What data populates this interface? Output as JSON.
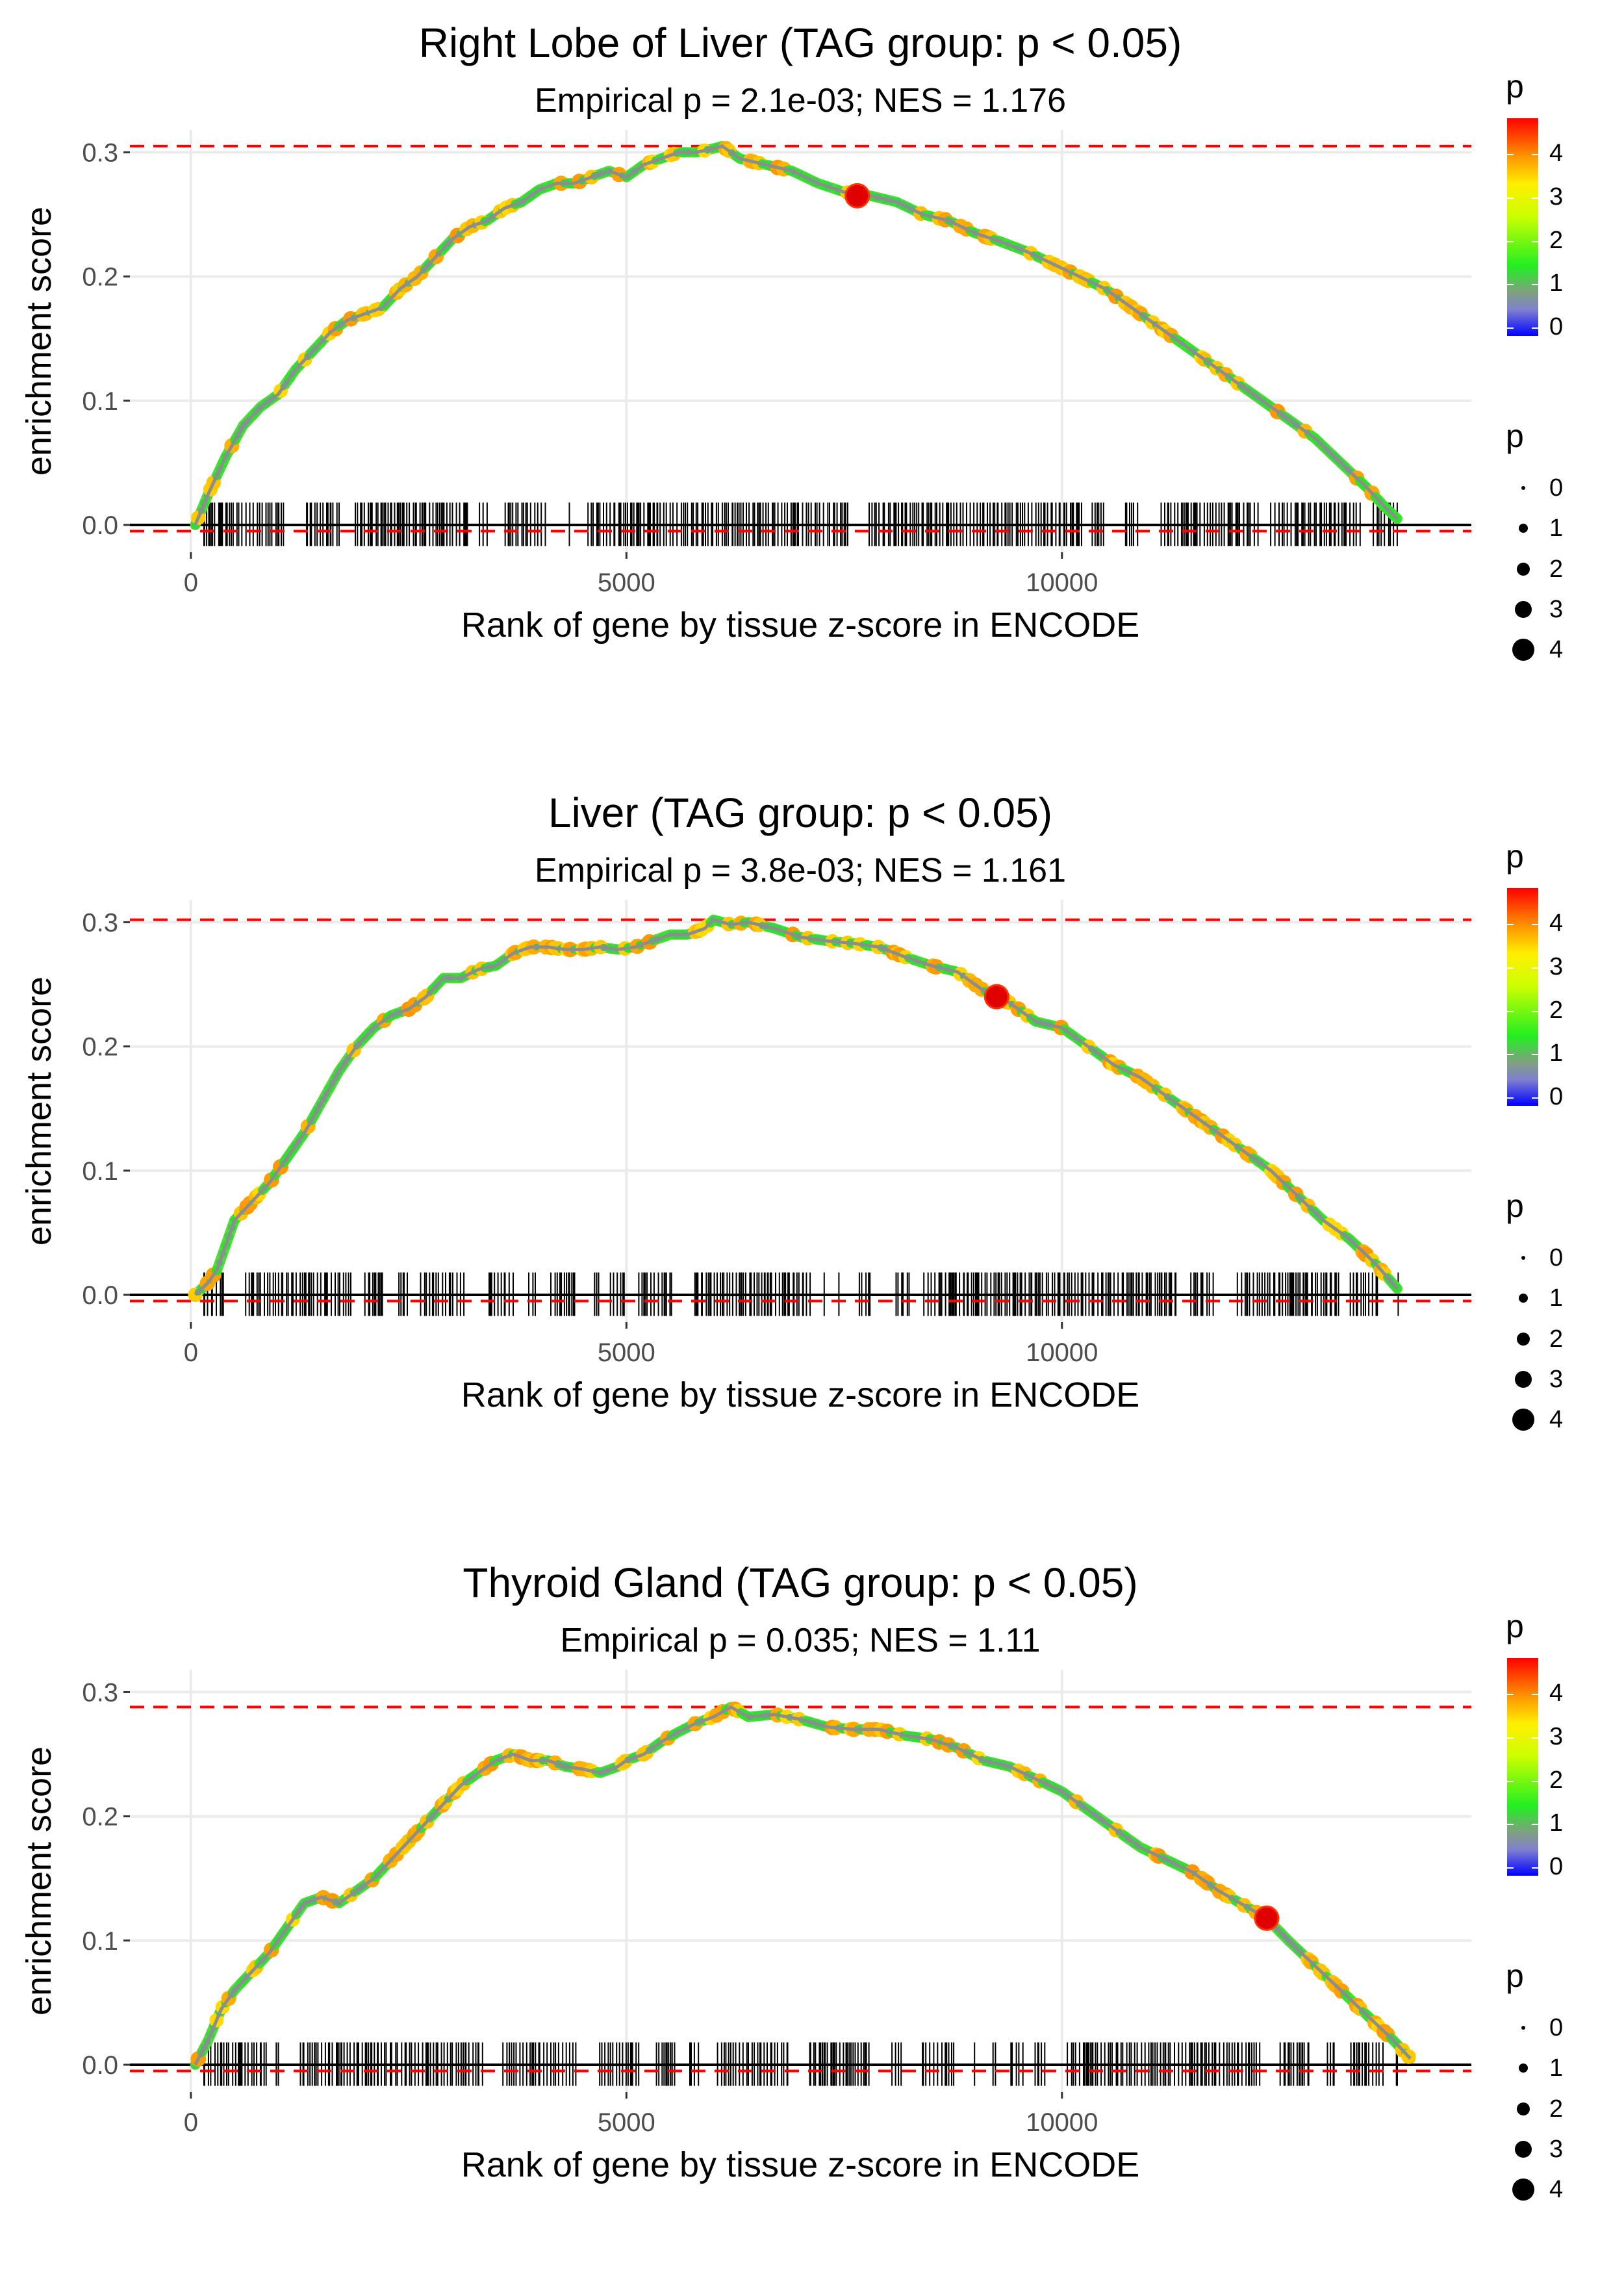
{
  "colors": {
    "reference_line": "#ff0000",
    "max_point": "#e00000",
    "baseline": "#000000",
    "grid": "#ebebeb",
    "tick_label": "#4d4d4d",
    "rug": "#000000",
    "curve_core": "#8d8d8d"
  },
  "chart_data": [
    {
      "type": "line",
      "title": "Right Lobe of Liver (TAG group: p < 0.05)",
      "subtitle": "Empirical p = 2.1e-03; NES = 1.176",
      "xlabel": "Rank of gene by tissue z-score in ENCODE",
      "ylabel": "enrichment score",
      "xlim": [
        -700,
        14700
      ],
      "ylim": [
        -0.022,
        0.318
      ],
      "x_ticks": [
        0,
        5000,
        10000
      ],
      "x_tick_labels": [
        "0",
        "5000",
        "10000"
      ],
      "y_ticks": [
        0,
        0.1,
        0.2,
        0.3
      ],
      "y_tick_labels": [
        "0.0",
        "0.1",
        "0.2",
        "0.3"
      ],
      "max_es": 0.305,
      "min_es": -0.005,
      "x_end": 13900,
      "highlight": {
        "x": 7650,
        "y": 0.265
      },
      "series": [
        {
          "name": "running enrichment score",
          "x": [
            50,
            200,
            400,
            600,
            800,
            1000,
            1200,
            1400,
            1600,
            1800,
            2000,
            2200,
            2400,
            2600,
            2800,
            3000,
            3200,
            3400,
            3600,
            3800,
            4000,
            4200,
            4400,
            4600,
            4800,
            5000,
            5200,
            5400,
            5600,
            5800,
            6000,
            6100,
            6300,
            6600,
            6900,
            7200,
            7500,
            7800,
            8100,
            8400,
            8700,
            9000,
            9300,
            9600,
            9900,
            10200,
            10500,
            10800,
            11100,
            11400,
            11700,
            12000,
            12300,
            12600,
            12900,
            13200,
            13500,
            13700,
            13850
          ],
          "y": [
            0.0,
            0.025,
            0.055,
            0.08,
            0.095,
            0.105,
            0.125,
            0.14,
            0.155,
            0.165,
            0.17,
            0.175,
            0.19,
            0.2,
            0.215,
            0.23,
            0.24,
            0.245,
            0.255,
            0.26,
            0.27,
            0.275,
            0.275,
            0.28,
            0.285,
            0.28,
            0.29,
            0.295,
            0.3,
            0.3,
            0.303,
            0.305,
            0.295,
            0.29,
            0.285,
            0.275,
            0.268,
            0.265,
            0.26,
            0.25,
            0.245,
            0.235,
            0.228,
            0.22,
            0.21,
            0.2,
            0.19,
            0.175,
            0.16,
            0.145,
            0.13,
            0.115,
            0.1,
            0.085,
            0.07,
            0.05,
            0.03,
            0.015,
            0.005
          ]
        }
      ]
    },
    {
      "type": "line",
      "title": "Liver (TAG group: p < 0.05)",
      "subtitle": "Empirical p = 3.8e-03; NES = 1.161",
      "xlabel": "Rank of gene by tissue z-score in ENCODE",
      "ylabel": "enrichment score",
      "xlim": [
        -700,
        14700
      ],
      "ylim": [
        -0.022,
        0.318
      ],
      "x_ticks": [
        0,
        5000,
        10000
      ],
      "x_tick_labels": [
        "0",
        "5000",
        "10000"
      ],
      "y_ticks": [
        0,
        0.1,
        0.2,
        0.3
      ],
      "y_tick_labels": [
        "0.0",
        "0.1",
        "0.2",
        "0.3"
      ],
      "max_es": 0.302,
      "min_es": -0.005,
      "x_end": 13900,
      "highlight": {
        "x": 9250,
        "y": 0.24
      },
      "series": [
        {
          "name": "running enrichment score",
          "x": [
            50,
            200,
            300,
            400,
            500,
            700,
            900,
            1100,
            1300,
            1500,
            1700,
            1900,
            2100,
            2300,
            2500,
            2700,
            2900,
            3100,
            3300,
            3500,
            3700,
            3900,
            4100,
            4300,
            4500,
            4700,
            4900,
            5100,
            5300,
            5500,
            5700,
            5900,
            6000,
            6200,
            6400,
            6700,
            7000,
            7300,
            7600,
            7900,
            8200,
            8500,
            8800,
            9100,
            9400,
            9700,
            10000,
            10300,
            10600,
            10900,
            11200,
            11500,
            11800,
            12100,
            12400,
            12700,
            13000,
            13300,
            13600,
            13850
          ],
          "y": [
            0.0,
            0.01,
            0.02,
            0.04,
            0.06,
            0.075,
            0.09,
            0.11,
            0.13,
            0.155,
            0.18,
            0.2,
            0.215,
            0.225,
            0.23,
            0.24,
            0.255,
            0.255,
            0.262,
            0.265,
            0.275,
            0.28,
            0.28,
            0.278,
            0.278,
            0.28,
            0.278,
            0.28,
            0.285,
            0.29,
            0.29,
            0.295,
            0.302,
            0.298,
            0.3,
            0.295,
            0.288,
            0.285,
            0.283,
            0.28,
            0.272,
            0.265,
            0.26,
            0.245,
            0.235,
            0.22,
            0.215,
            0.2,
            0.185,
            0.175,
            0.16,
            0.145,
            0.13,
            0.115,
            0.1,
            0.08,
            0.06,
            0.045,
            0.025,
            0.005
          ]
        }
      ]
    },
    {
      "type": "line",
      "title": "Thyroid Gland (TAG group: p < 0.05)",
      "subtitle": "Empirical p = 0.035; NES = 1.11",
      "xlabel": "Rank of gene by tissue z-score in ENCODE",
      "ylabel": "enrichment score",
      "xlim": [
        -700,
        14700
      ],
      "ylim": [
        -0.022,
        0.318
      ],
      "x_ticks": [
        0,
        5000,
        10000
      ],
      "x_tick_labels": [
        "0",
        "5000",
        "10000"
      ],
      "y_ticks": [
        0,
        0.1,
        0.2,
        0.3
      ],
      "y_tick_labels": [
        "0.0",
        "0.1",
        "0.2",
        "0.3"
      ],
      "max_es": 0.288,
      "min_es": -0.005,
      "x_end": 14000,
      "highlight": {
        "x": 12350,
        "y": 0.118
      },
      "series": [
        {
          "name": "running enrichment score",
          "x": [
            50,
            200,
            350,
            500,
            700,
            900,
            1100,
            1300,
            1500,
            1700,
            1900,
            2100,
            2300,
            2500,
            2700,
            2900,
            3100,
            3300,
            3500,
            3700,
            3900,
            4100,
            4300,
            4500,
            4700,
            4900,
            5000,
            5200,
            5400,
            5600,
            5800,
            6000,
            6200,
            6400,
            6700,
            7000,
            7300,
            7600,
            7900,
            8200,
            8500,
            8800,
            9100,
            9400,
            9700,
            10000,
            10300,
            10600,
            10900,
            11200,
            11500,
            11800,
            12100,
            12350,
            12600,
            12900,
            13200,
            13500,
            13800,
            14000
          ],
          "y": [
            0.0,
            0.02,
            0.045,
            0.06,
            0.075,
            0.09,
            0.11,
            0.13,
            0.135,
            0.13,
            0.14,
            0.15,
            0.165,
            0.18,
            0.195,
            0.21,
            0.225,
            0.235,
            0.245,
            0.25,
            0.245,
            0.245,
            0.24,
            0.238,
            0.235,
            0.24,
            0.245,
            0.25,
            0.26,
            0.268,
            0.275,
            0.28,
            0.288,
            0.28,
            0.282,
            0.278,
            0.272,
            0.27,
            0.27,
            0.265,
            0.262,
            0.255,
            0.245,
            0.24,
            0.23,
            0.22,
            0.205,
            0.19,
            0.175,
            0.165,
            0.155,
            0.14,
            0.128,
            0.118,
            0.1,
            0.08,
            0.06,
            0.04,
            0.02,
            0.005
          ]
        }
      ]
    }
  ],
  "legends": [
    {
      "color_title": "p",
      "color_labels": [
        "4",
        "3",
        "2",
        "1",
        "0"
      ],
      "size_title": "p",
      "size_labels": [
        "0",
        "1",
        "2",
        "3",
        "4"
      ]
    },
    {
      "color_title": "p",
      "color_labels": [
        "4",
        "3",
        "2",
        "1",
        "0"
      ],
      "size_title": "p",
      "size_labels": [
        "0",
        "1",
        "2",
        "3",
        "4"
      ]
    },
    {
      "color_title": "p",
      "color_labels": [
        "4",
        "3",
        "2",
        "1",
        "0"
      ],
      "size_title": "p",
      "size_labels": [
        "0",
        "1",
        "2",
        "3",
        "4"
      ]
    }
  ]
}
